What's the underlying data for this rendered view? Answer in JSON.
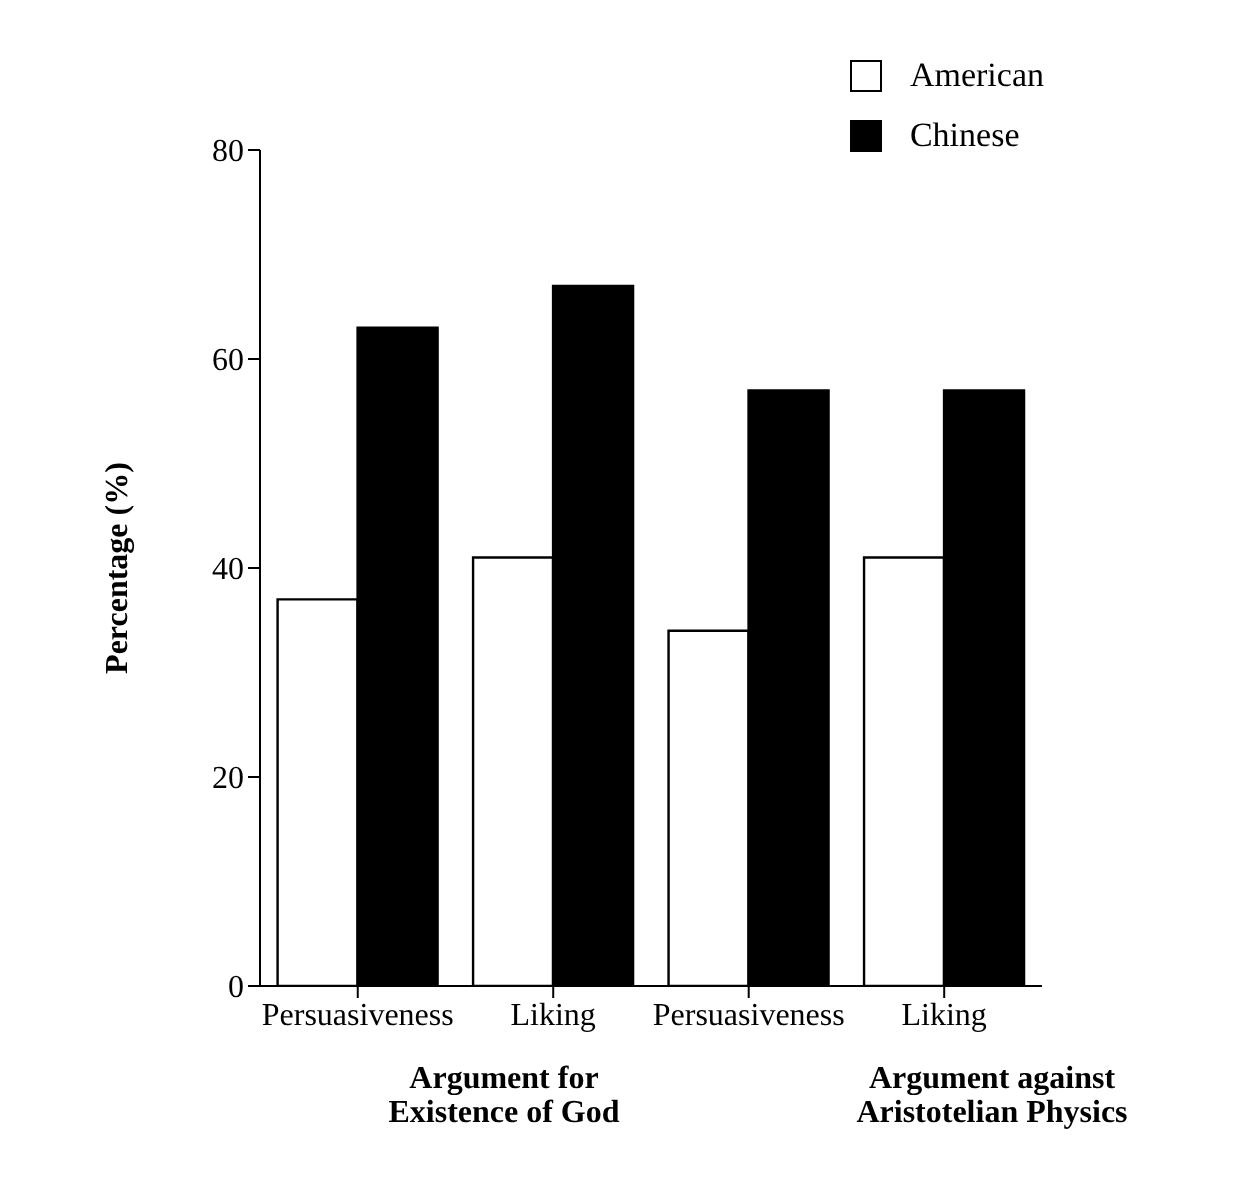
{
  "chart_data": {
    "type": "bar",
    "ylabel": "Percentage (%)",
    "categories": [
      "Persuasiveness",
      "Liking",
      "Persuasiveness",
      "Liking"
    ],
    "series": [
      {
        "name": "American",
        "color": "#ffffff",
        "values": [
          37,
          41,
          34,
          41
        ]
      },
      {
        "name": "Chinese",
        "color": "#000000",
        "values": [
          63,
          67,
          57,
          57
        ]
      }
    ],
    "ylim": [
      0,
      80
    ],
    "yticks": [
      0,
      20,
      40,
      60,
      80
    ],
    "grid": false,
    "legend": "top right",
    "annotations": [
      "Argument for\nExistence of God",
      "Argument against\nAristotelian Physics"
    ]
  }
}
